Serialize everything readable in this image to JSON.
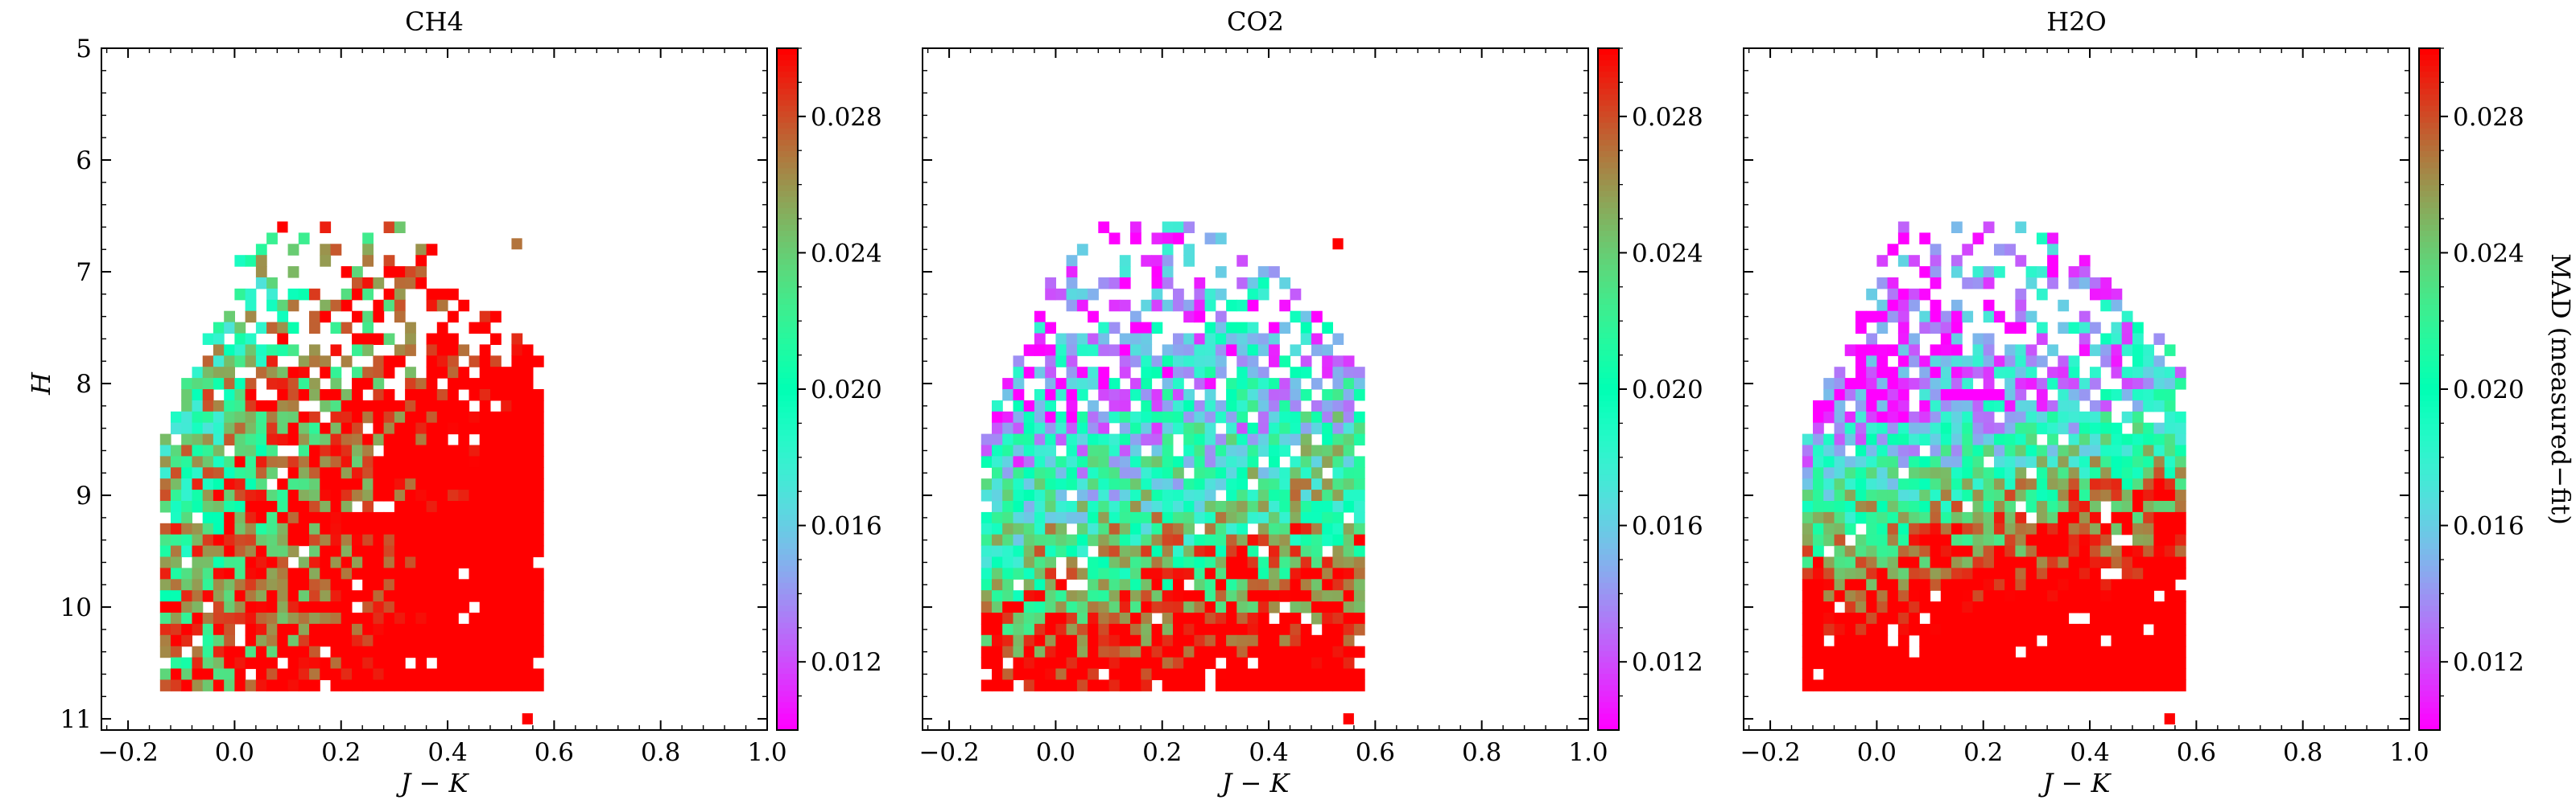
{
  "figure": {
    "colorbar": {
      "label": "MAD (measured−fit)",
      "vmin": 0.01,
      "vmax": 0.03,
      "ticks": [
        "0.012",
        "0.016",
        "0.020",
        "0.024",
        "0.028"
      ],
      "colormap": "rainbow"
    }
  },
  "chart_data": [
    {
      "type": "heatmap",
      "title": "CH4",
      "xlabel": "J − K",
      "ylabel": "H",
      "xlim": [
        -0.25,
        1.0
      ],
      "ylim": [
        11.1,
        5.0
      ],
      "y_inverted": true,
      "xticks": [
        "−0.2",
        "0.0",
        "0.2",
        "0.4",
        "0.6",
        "0.8",
        "1.0"
      ],
      "yticks": [
        "5",
        "6",
        "7",
        "8",
        "9",
        "10",
        "11"
      ],
      "grid": false,
      "cells": {
        "x_range": [
          -0.22,
          0.58
        ],
        "y_range": [
          6.5,
          10.7
        ],
        "trend": "MAD increases with J−K and with H; bright region (>0.028) at J−K 0.3–0.58, H 8–10.7",
        "outliers": [
          [
            0.08,
            6.55,
            0.03
          ],
          [
            0.54,
            10.95,
            0.03
          ],
          [
            0.52,
            6.7,
            0.027
          ]
        ]
      }
    },
    {
      "type": "heatmap",
      "title": "CO2",
      "xlabel": "J − K",
      "ylabel": "",
      "xlim": [
        -0.25,
        1.0
      ],
      "ylim": [
        11.1,
        5.0
      ],
      "y_inverted": true,
      "xticks": [
        "−0.2",
        "0.0",
        "0.2",
        "0.4",
        "0.6",
        "0.8",
        "1.0"
      ],
      "yticks": [],
      "grid": false,
      "cells": {
        "x_range": [
          -0.22,
          0.58
        ],
        "y_range": [
          6.5,
          10.8
        ],
        "trend": "low MAD (<0.013) at H 6.8–8; high MAD (>0.028) at H 9.6–10.8, J−K 0.1–0.58",
        "outliers": [
          [
            0.54,
            10.95,
            0.03
          ],
          [
            0.52,
            6.7,
            0.03
          ]
        ]
      }
    },
    {
      "type": "heatmap",
      "title": "H2O",
      "xlabel": "J − K",
      "ylabel": "",
      "xlim": [
        -0.25,
        1.0
      ],
      "ylim": [
        11.1,
        5.0
      ],
      "y_inverted": true,
      "xticks": [
        "−0.2",
        "0.0",
        "0.2",
        "0.4",
        "0.6",
        "0.8",
        "1.0"
      ],
      "yticks": [],
      "grid": false,
      "cells": {
        "x_range": [
          -0.22,
          0.58
        ],
        "y_range": [
          6.5,
          10.8
        ],
        "trend": "lowest MAD (<0.012) for H 7–8.8; high MAD (>0.028) at H 9.8–10.7, J−K 0.25–0.58",
        "outliers": [
          [
            0.54,
            10.95,
            0.03
          ]
        ]
      }
    }
  ]
}
